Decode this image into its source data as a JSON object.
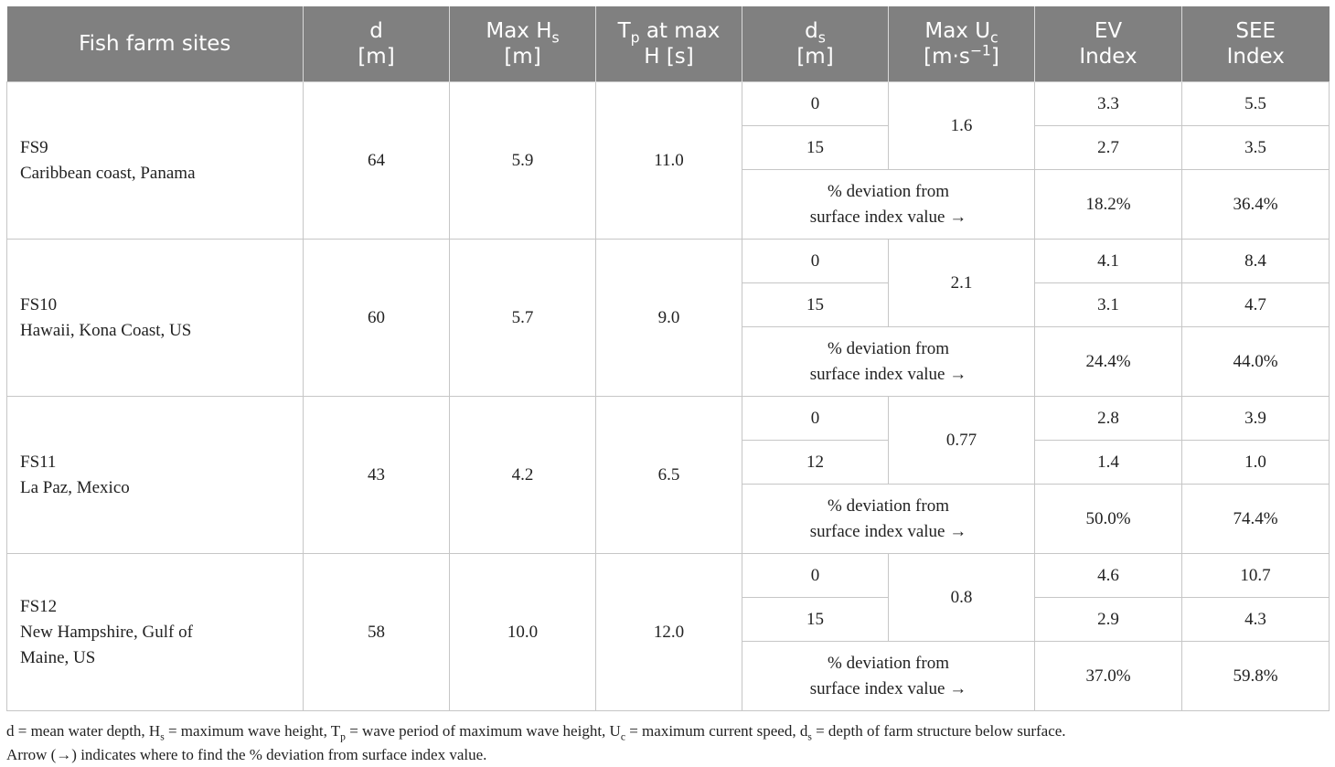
{
  "headers": {
    "site": "Fish farm sites",
    "d": [
      "d",
      "[m]"
    ],
    "hs": [
      "Max H",
      "s",
      "[m]"
    ],
    "tp": [
      "T",
      "p",
      " at max",
      "H [s]"
    ],
    "ds": [
      "d",
      "s",
      "[m]"
    ],
    "uc": [
      "Max U",
      "c",
      "[m·s",
      "−1",
      "]"
    ],
    "ev": [
      "EV",
      "Index"
    ],
    "see": [
      "SEE",
      "Index"
    ]
  },
  "deviation_label": [
    "% deviation from",
    "surface index value →"
  ],
  "rows": [
    {
      "id": "FS9",
      "location": "Caribbean coast, Panama",
      "d": "64",
      "hs": "5.9",
      "tp": "11.0",
      "uc": "1.6",
      "levels": [
        {
          "ds": "0",
          "ev": "3.3",
          "see": "5.5"
        },
        {
          "ds": "15",
          "ev": "2.7",
          "see": "3.5"
        }
      ],
      "dev_ev": "18.2%",
      "dev_see": "36.4%"
    },
    {
      "id": "FS10",
      "location": "Hawaii, Kona Coast, US",
      "d": "60",
      "hs": "5.7",
      "tp": "9.0",
      "uc": "2.1",
      "levels": [
        {
          "ds": "0",
          "ev": "4.1",
          "see": "8.4"
        },
        {
          "ds": "15",
          "ev": "3.1",
          "see": "4.7"
        }
      ],
      "dev_ev": "24.4%",
      "dev_see": "44.0%"
    },
    {
      "id": "FS11",
      "location": "La Paz, Mexico",
      "d": "43",
      "hs": "4.2",
      "tp": "6.5",
      "uc": "0.77",
      "levels": [
        {
          "ds": "0",
          "ev": "2.8",
          "see": "3.9"
        },
        {
          "ds": "12",
          "ev": "1.4",
          "see": "1.0"
        }
      ],
      "dev_ev": "50.0%",
      "dev_see": "74.4%"
    },
    {
      "id": "FS12",
      "location": "New Hampshire, Gulf of",
      "location2": "Maine, US",
      "d": "58",
      "hs": "10.0",
      "tp": "12.0",
      "uc": "0.8",
      "levels": [
        {
          "ds": "0",
          "ev": "4.6",
          "see": "10.7"
        },
        {
          "ds": "15",
          "ev": "2.9",
          "see": "4.3"
        }
      ],
      "dev_ev": "37.0%",
      "dev_see": "59.8%"
    }
  ],
  "footnotes": {
    "line1_parts": [
      "d = mean water depth, H",
      "s",
      " = maximum wave height, T",
      "p",
      " = wave period of maximum wave height, U",
      "c",
      " = maximum current speed, d",
      "s",
      " = depth of farm structure below surface."
    ],
    "line2": "Arrow (→) indicates where to find the % deviation from surface index value."
  }
}
